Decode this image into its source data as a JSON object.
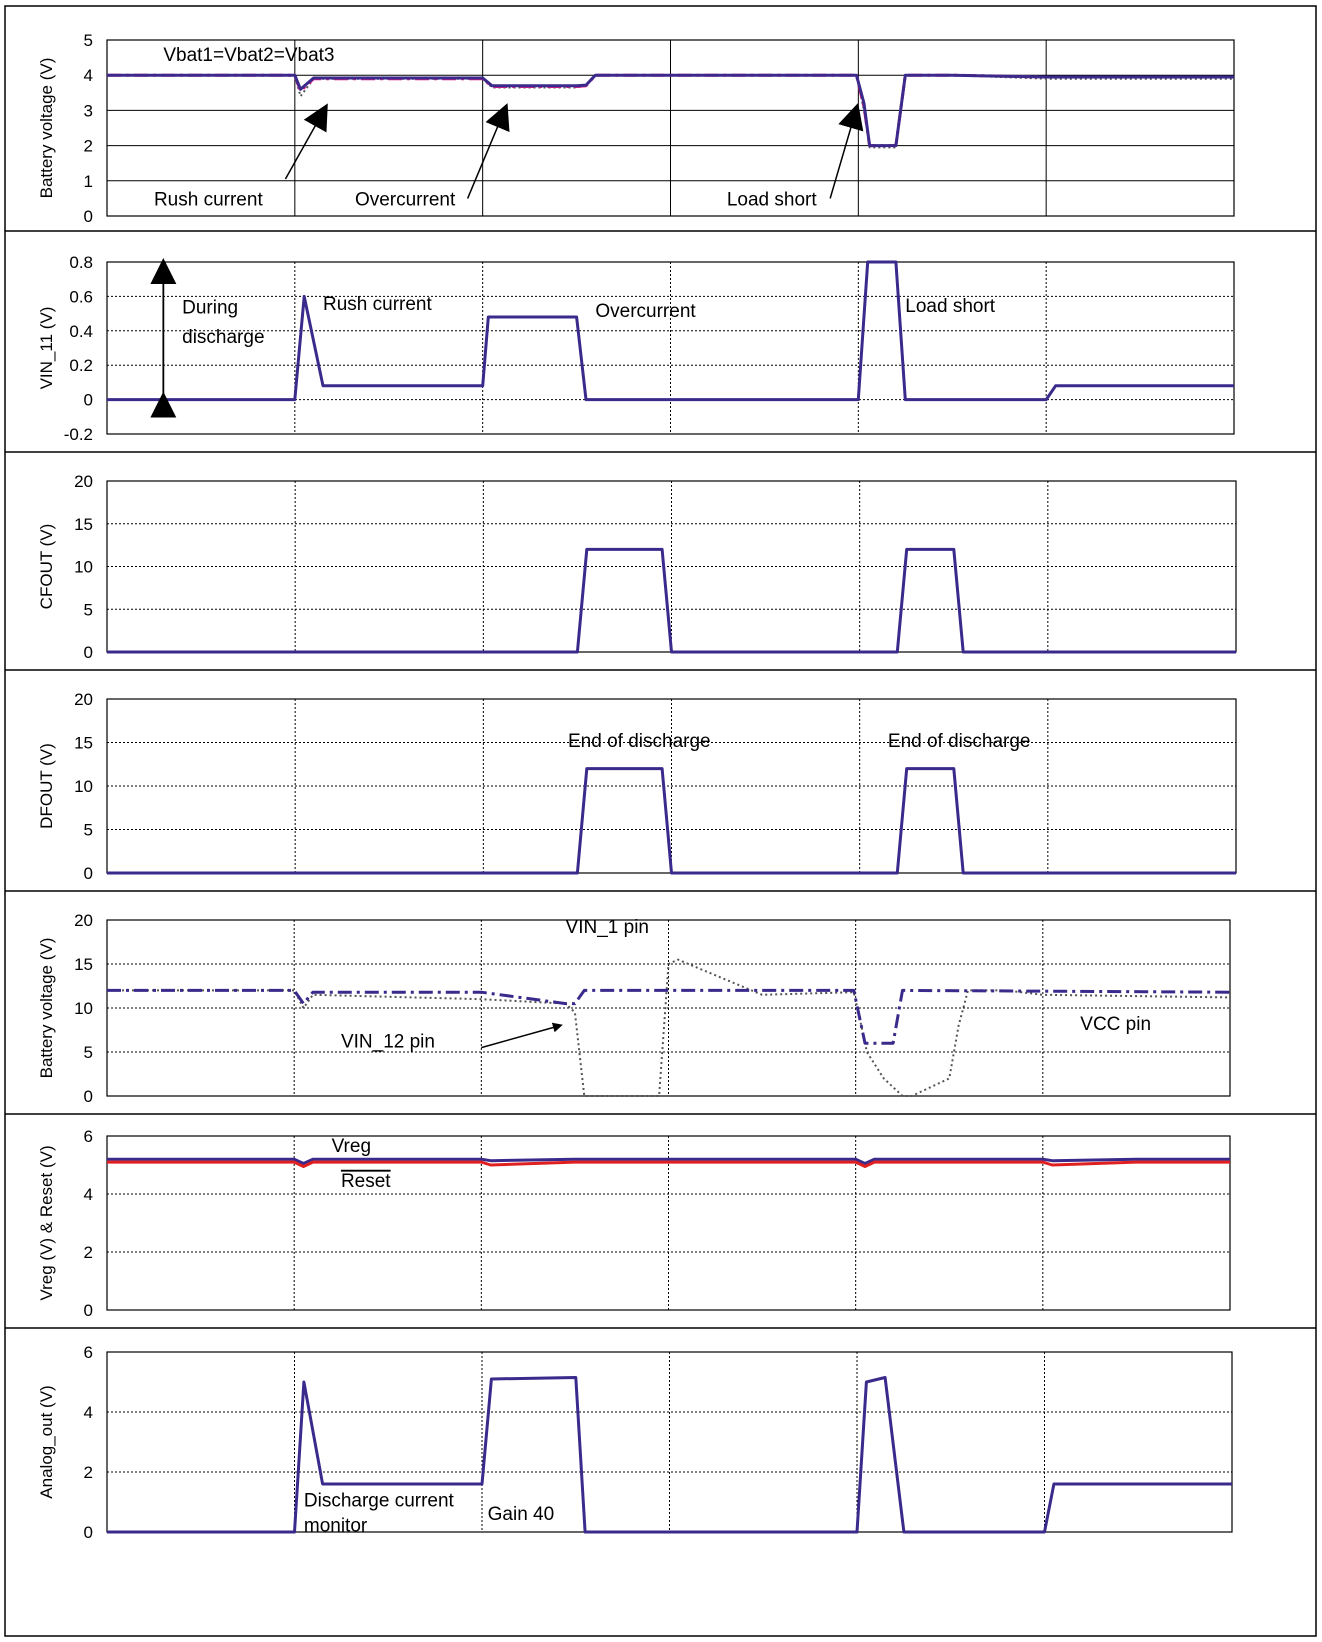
{
  "colors": {
    "primary": "#3b2a8c",
    "magenta": "#e0188a",
    "red": "#e02020",
    "dotted": "#555555",
    "grid": "#000000",
    "frame": "#000000"
  },
  "chart_data": [
    {
      "id": "p1",
      "type": "line",
      "ylabel": "Battery voltage (V)",
      "ylim": [
        0,
        5
      ],
      "yticks": [
        0,
        1,
        2,
        3,
        4,
        5
      ],
      "grid": "solid",
      "series": [
        {
          "style": "dotted",
          "color": "dotted",
          "x": [
            0,
            1,
            1.03,
            1.1,
            1.5,
            2,
            2.05,
            2.5,
            2.55,
            2.6,
            3,
            3.5,
            3.99,
            4.03,
            4.06,
            4.2,
            4.25,
            4.5,
            5,
            5.5,
            6
          ],
          "y": [
            4,
            4,
            3.4,
            3.9,
            3.9,
            3.9,
            3.65,
            3.65,
            3.7,
            4,
            4,
            4,
            4,
            3,
            1.95,
            1.95,
            4,
            4,
            3.9,
            3.9,
            3.9
          ]
        },
        {
          "style": "dashdot",
          "color": "magenta",
          "x": [
            0,
            1,
            1.03,
            1.1,
            1.5,
            2,
            2.05,
            2.5,
            2.55,
            2.6,
            3,
            3.5,
            3.99,
            4.03,
            4.06,
            4.2,
            4.25,
            4.5,
            5,
            5.5,
            6
          ],
          "y": [
            4,
            4,
            3.55,
            3.9,
            3.9,
            3.9,
            3.68,
            3.68,
            3.7,
            4,
            4,
            4,
            4,
            3.1,
            2,
            2,
            4,
            4,
            3.95,
            3.95,
            3.95
          ]
        },
        {
          "style": "solid",
          "color": "primary",
          "x": [
            0,
            1,
            1.03,
            1.1,
            1.5,
            2,
            2.05,
            2.5,
            2.55,
            2.6,
            3,
            3.5,
            3.99,
            4.03,
            4.06,
            4.2,
            4.25,
            4.5,
            5,
            5.5,
            6
          ],
          "y": [
            4,
            4,
            3.6,
            3.92,
            3.92,
            3.92,
            3.7,
            3.7,
            3.72,
            4,
            4,
            4,
            4,
            3.2,
            2,
            2,
            4,
            4,
            3.95,
            3.95,
            3.95
          ]
        }
      ],
      "annotations": [
        {
          "text": "Vbat1=Vbat2=Vbat3",
          "x": 0.3,
          "y": 4.4
        },
        {
          "text": "Rush current",
          "x": 0.25,
          "y": 0.3
        },
        {
          "text": "Overcurrent",
          "x": 1.32,
          "y": 0.3
        },
        {
          "text": "Load short",
          "x": 3.3,
          "y": 0.3
        }
      ],
      "arrows": [
        {
          "from": [
            0.95,
            1.05
          ],
          "to": [
            1.16,
            3.05
          ]
        },
        {
          "from": [
            1.92,
            0.5
          ],
          "to": [
            2.12,
            3.05
          ]
        },
        {
          "from": [
            3.85,
            0.5
          ],
          "to": [
            3.99,
            3.05
          ]
        }
      ]
    },
    {
      "id": "p2",
      "type": "line",
      "ylabel": "VIN_11 (V)",
      "ylim": [
        -0.2,
        0.8
      ],
      "yticks": [
        -0.2,
        0,
        0.2,
        0.4,
        0.6,
        0.8
      ],
      "grid": "dotted",
      "series": [
        {
          "style": "solid",
          "color": "primary",
          "x": [
            0,
            1,
            1.05,
            1.15,
            2,
            2.03,
            2.5,
            2.55,
            4,
            4.05,
            4.2,
            4.25,
            5,
            5.05,
            6
          ],
          "y": [
            0,
            0,
            0.6,
            0.08,
            0.08,
            0.48,
            0.48,
            0,
            0,
            0.8,
            0.8,
            0,
            0,
            0.08,
            0.08
          ]
        }
      ],
      "annotations": [
        {
          "text": "During",
          "x": 0.4,
          "y": 0.5
        },
        {
          "text": "discharge",
          "x": 0.4,
          "y": 0.33
        },
        {
          "text": "Rush current",
          "x": 1.15,
          "y": 0.52
        },
        {
          "text": "Overcurrent",
          "x": 2.6,
          "y": 0.48
        },
        {
          "text": "Load short",
          "x": 4.25,
          "y": 0.51
        }
      ],
      "double_arrow": {
        "x": 0.3,
        "y1": 0.8,
        "y2": 0
      }
    },
    {
      "id": "p3",
      "type": "line",
      "ylabel": "CFOUT (V)",
      "ylim": [
        0,
        20
      ],
      "yticks": [
        0,
        5,
        10,
        15,
        20
      ],
      "grid": "dotted",
      "series": [
        {
          "style": "solid",
          "color": "primary",
          "x": [
            0,
            2.5,
            2.55,
            2.95,
            3,
            4.2,
            4.25,
            4.5,
            4.55,
            6
          ],
          "y": [
            0,
            0,
            12,
            12,
            0,
            0,
            12,
            12,
            0,
            0
          ]
        }
      ],
      "annotations": []
    },
    {
      "id": "p4",
      "type": "line",
      "ylabel": "DFOUT (V)",
      "ylim": [
        0,
        20
      ],
      "yticks": [
        0,
        5,
        10,
        15,
        20
      ],
      "grid": "dotted",
      "series": [
        {
          "style": "solid",
          "color": "primary",
          "x": [
            0,
            2.5,
            2.55,
            2.95,
            3,
            4.2,
            4.25,
            4.5,
            4.55,
            6
          ],
          "y": [
            0,
            0,
            12,
            12,
            0,
            0,
            12,
            12,
            0,
            0
          ]
        }
      ],
      "annotations": [
        {
          "text": "End of discharge",
          "x": 2.45,
          "y": 14.5
        },
        {
          "text": "End of discharge",
          "x": 4.15,
          "y": 14.5
        }
      ]
    },
    {
      "id": "p5",
      "type": "line",
      "ylabel": "Battery voltage (V)",
      "ylim": [
        0,
        20
      ],
      "yticks": [
        0,
        5,
        10,
        15,
        20
      ],
      "grid": "dotted",
      "series": [
        {
          "style": "dotted",
          "color": "dotted",
          "x": [
            0,
            1,
            1.05,
            1.1,
            2,
            2.45,
            2.5,
            2.55,
            2.6,
            2.95,
            3,
            3.05,
            3.5,
            3.99,
            4.03,
            4.06,
            4.15,
            4.25,
            4.3,
            4.5,
            4.55,
            4.6,
            4.8,
            5,
            6
          ],
          "y": [
            12,
            12,
            10,
            11.5,
            11,
            10.5,
            9.5,
            0,
            0,
            0,
            15,
            15.5,
            11.5,
            11.8,
            8,
            5,
            2,
            0,
            0,
            2,
            8,
            12,
            12,
            11.5,
            11.2
          ]
        },
        {
          "style": "dashdot",
          "color": "primary",
          "x": [
            0,
            1,
            1.05,
            1.1,
            2,
            2.45,
            2.5,
            2.55,
            3.99,
            4.05,
            4.2,
            4.25,
            6
          ],
          "y": [
            12,
            12,
            10.5,
            11.8,
            11.8,
            10.5,
            10.5,
            12,
            12,
            6,
            6,
            12,
            11.8
          ]
        }
      ],
      "annotations": [
        {
          "text": "VIN_1 pin",
          "x": 2.45,
          "y": 18.5
        },
        {
          "text": "VIN_12 pin",
          "x": 1.25,
          "y": 5.5
        },
        {
          "text": "VCC pin",
          "x": 5.2,
          "y": 7.5
        }
      ],
      "arrows": [
        {
          "from": [
            2.0,
            5.5
          ],
          "to": [
            2.42,
            8.0
          ]
        }
      ]
    },
    {
      "id": "p6",
      "type": "line",
      "ylabel": "Vreg (V) & Reset (V)",
      "ylim": [
        0,
        6
      ],
      "yticks": [
        0,
        2,
        4,
        6
      ],
      "grid": "dotted",
      "series": [
        {
          "name": "Vreg",
          "style": "solid",
          "color": "primary",
          "x": [
            0,
            1,
            1.05,
            1.1,
            2,
            2.05,
            2.5,
            3,
            4,
            4.05,
            4.1,
            5,
            5.05,
            5.5,
            6
          ],
          "y": [
            5.2,
            5.2,
            5.05,
            5.2,
            5.2,
            5.15,
            5.2,
            5.2,
            5.2,
            5.05,
            5.2,
            5.2,
            5.15,
            5.2,
            5.2
          ]
        },
        {
          "name": "Reset",
          "style": "solid",
          "color": "red",
          "x": [
            0,
            1,
            1.05,
            1.1,
            2,
            2.05,
            2.5,
            3,
            4,
            4.05,
            4.1,
            5,
            5.05,
            5.5,
            6
          ],
          "y": [
            5.1,
            5.1,
            4.95,
            5.1,
            5.1,
            5.0,
            5.1,
            5.1,
            5.1,
            4.95,
            5.1,
            5.1,
            5.0,
            5.1,
            5.1
          ]
        }
      ],
      "annotations": [
        {
          "text": "Vreg",
          "x": 1.2,
          "y": 5.45
        },
        {
          "text": "Reset",
          "x": 1.25,
          "y": 4.25,
          "overline": true
        }
      ]
    },
    {
      "id": "p7",
      "type": "line",
      "ylabel": "Analog_out (V)",
      "ylim": [
        0,
        6
      ],
      "yticks": [
        0,
        2,
        4,
        6
      ],
      "grid": "dotted",
      "series": [
        {
          "style": "solid",
          "color": "primary",
          "x": [
            0,
            1,
            1.05,
            1.15,
            2,
            2.05,
            2.5,
            2.55,
            4,
            4.05,
            4.15,
            4.25,
            5,
            5.05,
            6
          ],
          "y": [
            0,
            0,
            5,
            1.6,
            1.6,
            5.1,
            5.15,
            0,
            0,
            5,
            5.15,
            0,
            0,
            1.6,
            1.6
          ]
        }
      ],
      "annotations": [
        {
          "text": "Discharge current",
          "x": 1.05,
          "y": 0.85
        },
        {
          "text": "monitor",
          "x": 1.05,
          "y": 0.02
        },
        {
          "text": "Gain 40",
          "x": 2.03,
          "y": 0.4
        }
      ]
    }
  ]
}
